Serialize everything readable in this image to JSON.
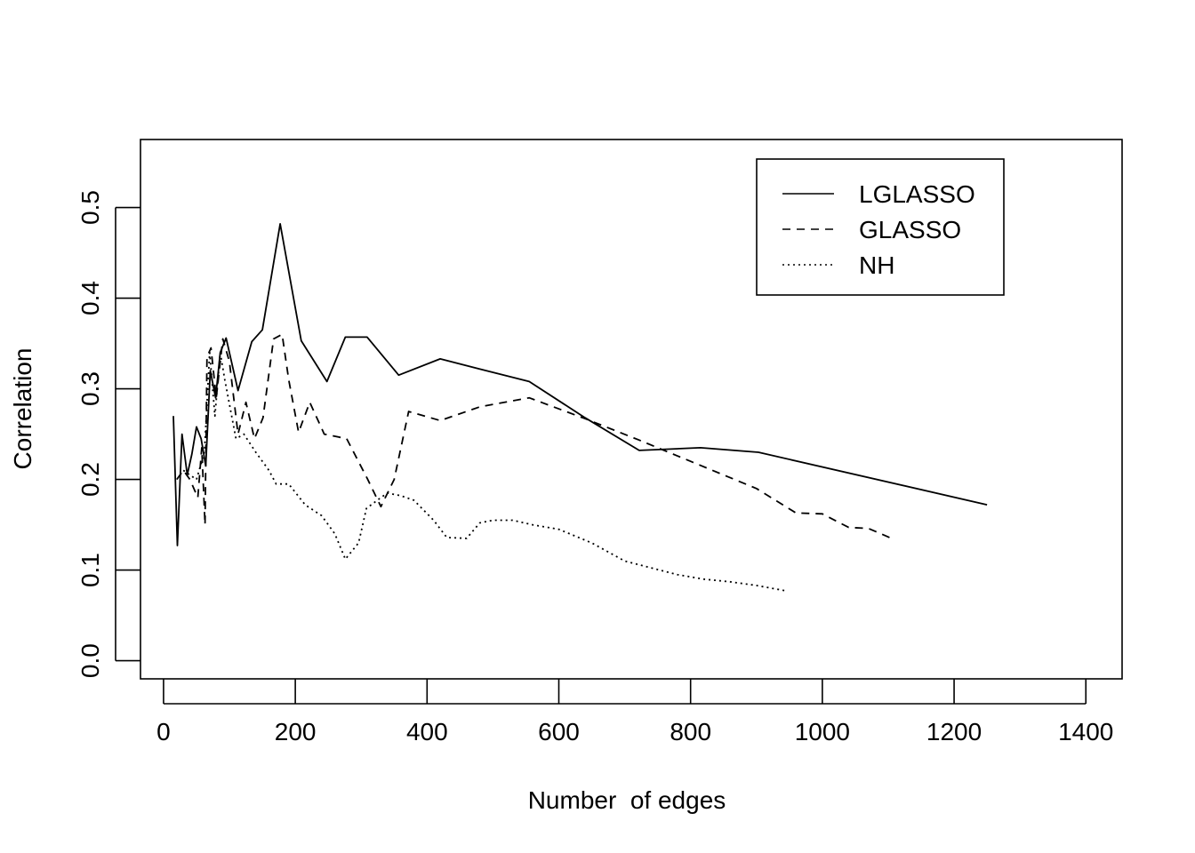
{
  "chart_data": {
    "type": "line",
    "title": "",
    "xlabel": "Number  of edges",
    "ylabel": "Correlation",
    "xlim": [
      -35,
      1455
    ],
    "ylim": [
      -0.02,
      0.575
    ],
    "xticks": [
      0,
      200,
      400,
      600,
      800,
      1000,
      1200,
      1400
    ],
    "yticks": [
      0.0,
      0.1,
      0.2,
      0.3,
      0.4,
      0.5
    ],
    "xtick_labels": [
      "0",
      "200",
      "400",
      "600",
      "800",
      "1000",
      "1200",
      "1400"
    ],
    "ytick_labels": [
      "0.0",
      "0.1",
      "0.2",
      "0.3",
      "0.4",
      "0.5"
    ],
    "grid": false,
    "legend_position": "top-right",
    "series": [
      {
        "name": "LGLASSO",
        "line_style": "solid",
        "color": "#000000",
        "x": [
          15,
          21,
          28,
          36,
          43,
          50,
          57,
          64,
          71,
          79,
          86,
          95,
          113,
          134,
          150,
          177,
          209,
          248,
          276,
          309,
          357,
          420,
          479,
          555,
          640,
          722,
          815,
          903,
          1250
        ],
        "y": [
          0.27,
          0.127,
          0.25,
          0.205,
          0.228,
          0.258,
          0.245,
          0.215,
          0.32,
          0.29,
          0.34,
          0.356,
          0.298,
          0.352,
          0.365,
          0.482,
          0.353,
          0.308,
          0.357,
          0.357,
          0.315,
          0.333,
          0.322,
          0.308,
          0.268,
          0.232,
          0.235,
          0.23,
          0.172
        ]
      },
      {
        "name": "GLASSO",
        "line_style": "dashed",
        "color": "#000000",
        "x": [
          20,
          30,
          40,
          52,
          58,
          63,
          66,
          72,
          80,
          90,
          100,
          113,
          125,
          138,
          151,
          167,
          180,
          190,
          205,
          222,
          244,
          278,
          310,
          330,
          350,
          372,
          420,
          480,
          555,
          640,
          720,
          800,
          900,
          960,
          1000,
          1040,
          1070,
          1105
        ],
        "y": [
          0.2,
          0.21,
          0.2,
          0.18,
          0.235,
          0.15,
          0.335,
          0.345,
          0.29,
          0.355,
          0.33,
          0.25,
          0.285,
          0.245,
          0.268,
          0.355,
          0.36,
          0.31,
          0.252,
          0.285,
          0.25,
          0.245,
          0.2,
          0.17,
          0.2,
          0.275,
          0.265,
          0.28,
          0.29,
          0.267,
          0.244,
          0.22,
          0.19,
          0.163,
          0.162,
          0.147,
          0.146,
          0.135
        ]
      },
      {
        "name": "NH",
        "line_style": "dotted",
        "color": "#000000",
        "x": [
          30,
          50,
          62,
          70,
          78,
          86,
          93,
          110,
          122,
          140,
          160,
          171,
          190,
          215,
          240,
          260,
          276,
          296,
          308,
          330,
          340,
          360,
          380,
          410,
          430,
          460,
          480,
          500,
          530,
          560,
          600,
          650,
          700,
          780,
          820,
          860,
          900,
          945
        ],
        "y": [
          0.21,
          0.2,
          0.23,
          0.34,
          0.27,
          0.34,
          0.31,
          0.245,
          0.25,
          0.23,
          0.21,
          0.195,
          0.195,
          0.172,
          0.16,
          0.14,
          0.112,
          0.13,
          0.168,
          0.18,
          0.185,
          0.182,
          0.177,
          0.155,
          0.136,
          0.135,
          0.152,
          0.155,
          0.155,
          0.15,
          0.145,
          0.13,
          0.11,
          0.095,
          0.09,
          0.087,
          0.083,
          0.077
        ]
      }
    ]
  }
}
